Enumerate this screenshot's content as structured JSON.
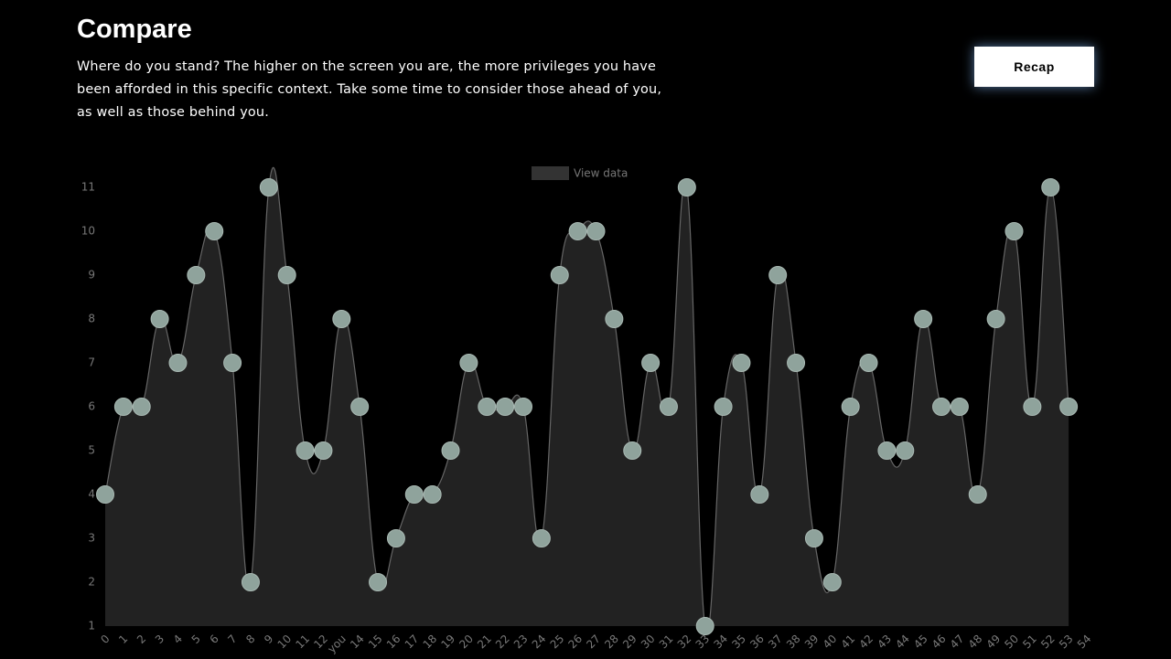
{
  "header": {
    "title": "Compare",
    "description": "Where do you stand? The higher on the screen you are, the more privileges you have been afforded in this specific context. Take some time to consider those ahead of you, as well as those behind you.",
    "button": "Recap"
  },
  "chart_data": {
    "type": "area",
    "legend": "View data",
    "color": "#8fa39c",
    "fill": "#222222",
    "line_color": "#666666",
    "categories": [
      "0",
      "1",
      "2",
      "3",
      "4",
      "5",
      "6",
      "7",
      "8",
      "9",
      "10",
      "11",
      "12",
      "you",
      "14",
      "15",
      "16",
      "17",
      "18",
      "19",
      "20",
      "21",
      "22",
      "23",
      "24",
      "25",
      "26",
      "27",
      "28",
      "29",
      "30",
      "31",
      "32",
      "33",
      "34",
      "35",
      "36",
      "37",
      "38",
      "39",
      "40",
      "41",
      "42",
      "43",
      "44",
      "45",
      "46",
      "47",
      "48",
      "49",
      "50",
      "51",
      "52",
      "53",
      "54"
    ],
    "values": [
      4,
      6,
      6,
      8,
      7,
      9,
      10,
      7,
      2,
      11,
      9,
      5,
      5,
      8,
      6,
      2,
      3,
      4,
      4,
      5,
      7,
      6,
      6,
      6,
      3,
      9,
      10,
      10,
      8,
      5,
      7,
      6,
      11,
      1,
      6,
      7,
      4,
      9,
      7,
      3,
      2,
      6,
      7,
      5,
      5,
      8,
      6,
      6,
      4,
      8,
      10,
      6,
      11,
      6,
      null
    ],
    "ylim": [
      1,
      11
    ],
    "yticks": [
      1,
      2,
      3,
      4,
      5,
      6,
      7,
      8,
      9,
      10,
      11
    ]
  }
}
